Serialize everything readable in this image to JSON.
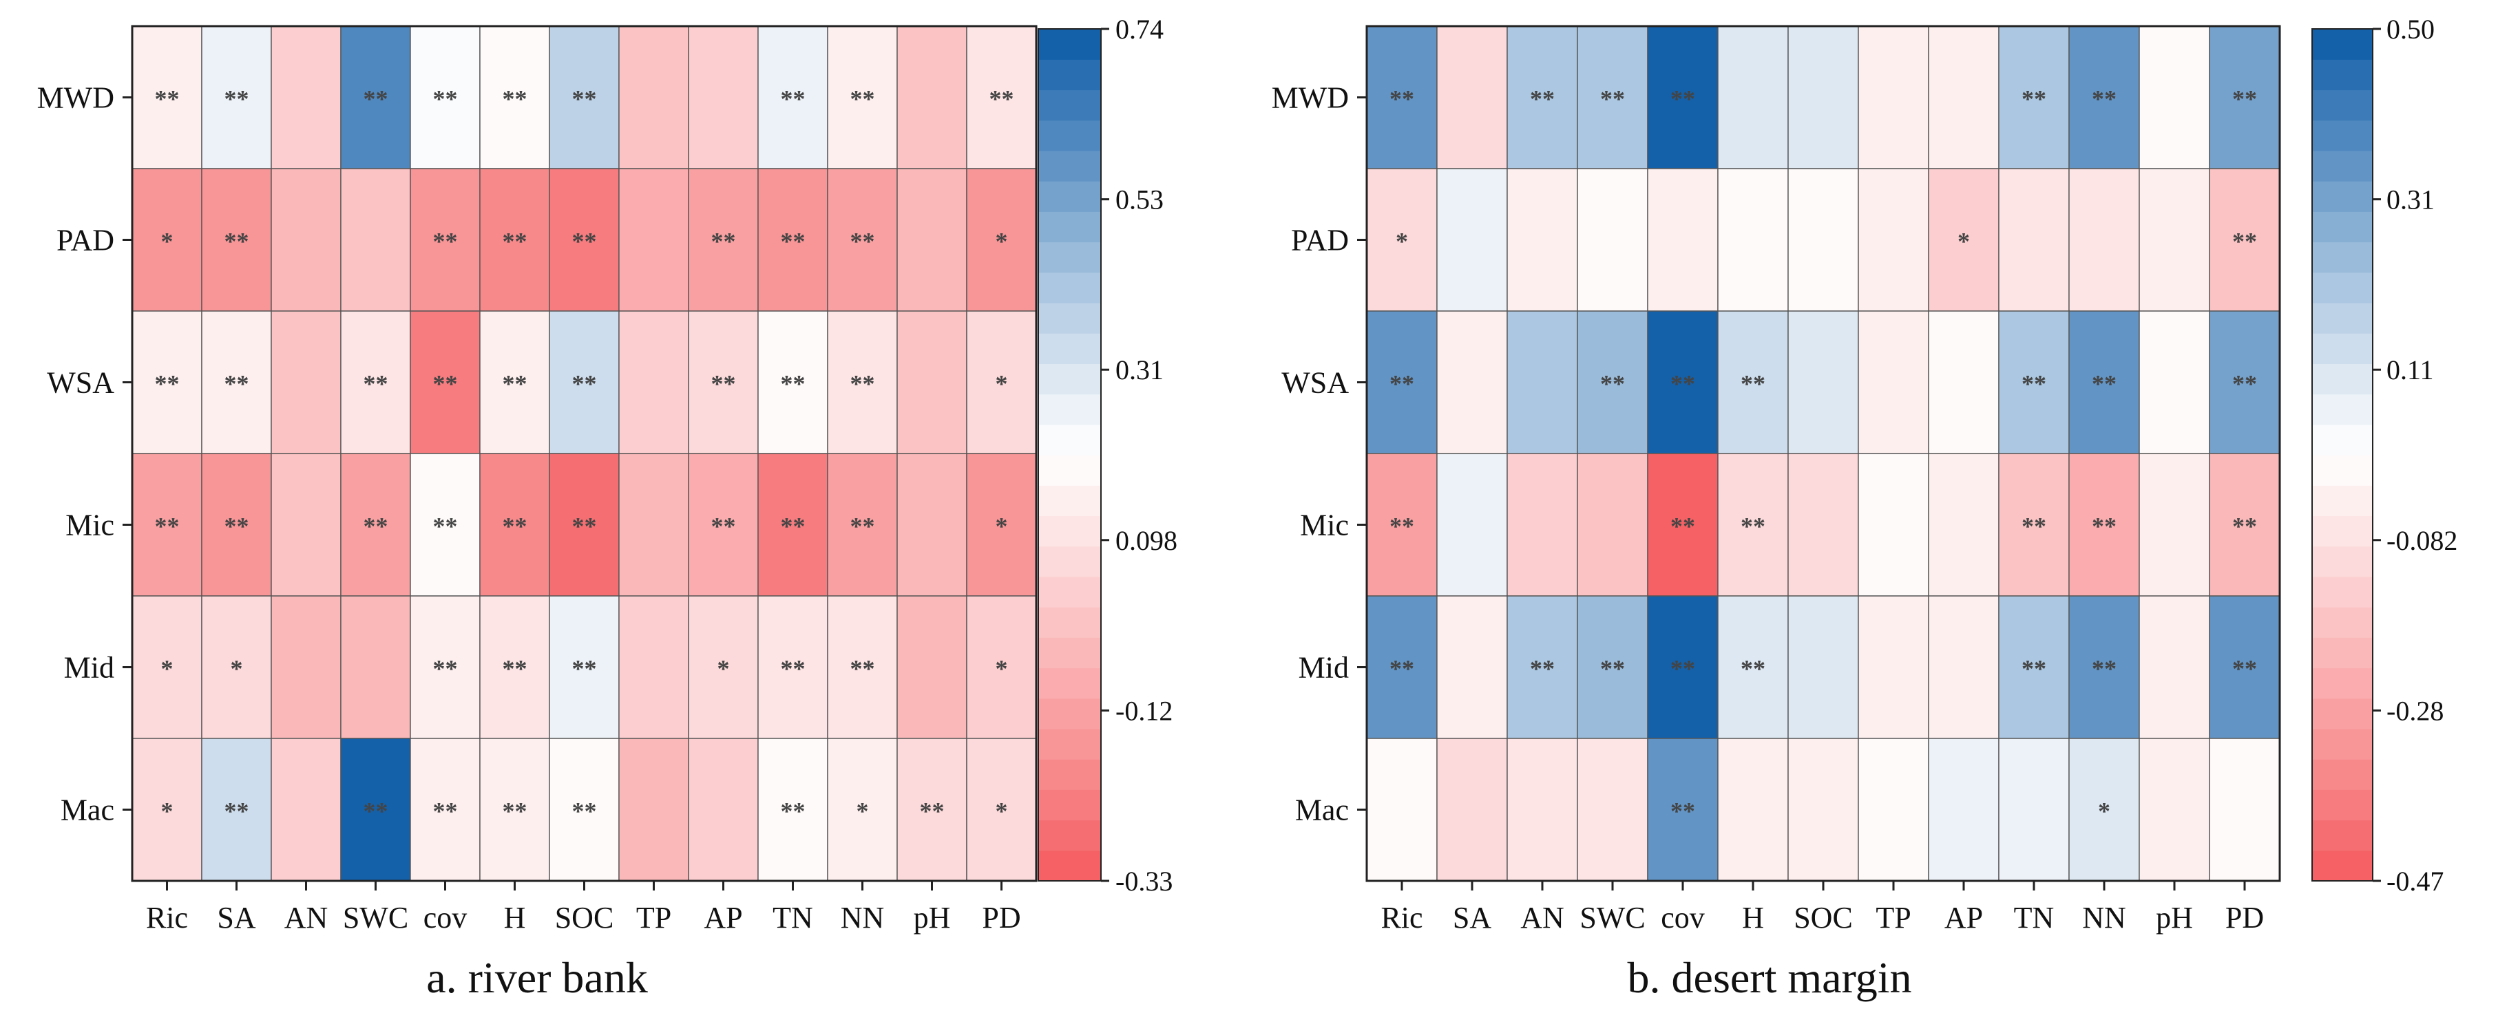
{
  "chart_data": [
    {
      "type": "heatmap",
      "title": "a. river bank",
      "rows": [
        "MWD",
        "PAD",
        "WSA",
        "Mic",
        "Mid",
        "Mac"
      ],
      "columns": [
        "Ric",
        "SA",
        "AN",
        "SWC",
        "cov",
        "H",
        "SOC",
        "TP",
        "AP",
        "TN",
        "NN",
        "pH",
        "PD"
      ],
      "values": [
        [
          0.16,
          0.28,
          0.05,
          0.6,
          0.22,
          0.19,
          0.36,
          -0.02,
          0.05,
          0.27,
          0.14,
          -0.02,
          0.12
        ],
        [
          -0.17,
          -0.14,
          -0.04,
          -0.02,
          -0.17,
          -0.19,
          -0.23,
          -0.1,
          -0.13,
          -0.17,
          -0.13,
          -0.06,
          -0.17
        ],
        [
          0.13,
          0.15,
          -0.02,
          0.11,
          -0.22,
          0.15,
          0.32,
          0.03,
          0.08,
          0.18,
          0.12,
          -0.02,
          0.06
        ],
        [
          -0.12,
          -0.16,
          -0.02,
          -0.11,
          0.18,
          -0.18,
          -0.27,
          -0.06,
          -0.09,
          -0.22,
          -0.13,
          -0.03,
          -0.17
        ],
        [
          0.06,
          0.09,
          -0.04,
          -0.03,
          0.14,
          0.11,
          0.27,
          0.03,
          0.06,
          0.12,
          0.11,
          -0.05,
          0.05
        ],
        [
          0.06,
          0.35,
          0.04,
          0.74,
          0.14,
          0.14,
          0.18,
          -0.03,
          0.02,
          0.18,
          0.13,
          0.09,
          0.09
        ]
      ],
      "significance": [
        [
          "**",
          "**",
          "",
          "**",
          "**",
          "**",
          "**",
          "",
          "",
          "**",
          "**",
          "",
          "**"
        ],
        [
          "*",
          "**",
          "",
          "",
          "**",
          "**",
          "**",
          "",
          "**",
          "**",
          "**",
          "",
          "*"
        ],
        [
          "**",
          "**",
          "",
          "**",
          "**",
          "**",
          "**",
          "",
          "**",
          "**",
          "**",
          "",
          "*"
        ],
        [
          "**",
          "**",
          "",
          "**",
          "**",
          "**",
          "**",
          "",
          "**",
          "**",
          "**",
          "",
          "*"
        ],
        [
          "*",
          "*",
          "",
          "",
          "**",
          "**",
          "**",
          "",
          "*",
          "**",
          "**",
          "",
          "*"
        ],
        [
          "*",
          "**",
          "",
          "**",
          "**",
          "**",
          "**",
          "",
          "",
          "**",
          "*",
          "**",
          "*"
        ]
      ],
      "colorbar_ticks": [
        "0.74",
        "0.53",
        "0.31",
        "0.098",
        "-0.12",
        "-0.33"
      ],
      "value_range": [
        -0.33,
        0.74
      ]
    },
    {
      "type": "heatmap",
      "title": "b. desert margin",
      "rows": [
        "MWD",
        "PAD",
        "WSA",
        "Mic",
        "Mid",
        "Mac"
      ],
      "columns": [
        "Ric",
        "SA",
        "AN",
        "SWC",
        "cov",
        "H",
        "SOC",
        "TP",
        "AP",
        "TN",
        "NN",
        "pH",
        "PD"
      ],
      "values": [
        [
          0.34,
          -0.12,
          0.22,
          0.2,
          0.5,
          0.09,
          0.1,
          -0.02,
          -0.03,
          0.2,
          0.34,
          0.0,
          0.3
        ],
        [
          -0.12,
          0.06,
          -0.05,
          0.0,
          -0.05,
          0.0,
          0.01,
          -0.03,
          -0.13,
          -0.07,
          -0.07,
          -0.04,
          -0.17
        ],
        [
          0.34,
          -0.05,
          0.2,
          0.24,
          0.5,
          0.12,
          0.1,
          -0.03,
          -0.01,
          0.22,
          0.34,
          -0.01,
          0.32
        ],
        [
          -0.28,
          0.06,
          -0.14,
          -0.16,
          -0.45,
          -0.12,
          -0.12,
          0.0,
          -0.02,
          -0.17,
          -0.24,
          -0.05,
          -0.22
        ],
        [
          0.36,
          -0.05,
          0.2,
          0.24,
          0.48,
          0.11,
          0.1,
          -0.03,
          -0.03,
          0.2,
          0.35,
          -0.02,
          0.33
        ],
        [
          0.0,
          -0.12,
          -0.06,
          -0.07,
          0.33,
          -0.05,
          -0.04,
          0.0,
          0.08,
          0.06,
          0.1,
          -0.04,
          0.0
        ]
      ],
      "significance": [
        [
          "**",
          "",
          "**",
          "**",
          "**",
          "",
          "",
          "",
          "",
          "**",
          "**",
          "",
          "**"
        ],
        [
          "*",
          "",
          "",
          "",
          "",
          "",
          "",
          "",
          "*",
          "",
          "",
          "",
          "**"
        ],
        [
          "**",
          "",
          "",
          "**",
          "**",
          "**",
          "",
          "",
          "",
          "**",
          "**",
          "",
          "**"
        ],
        [
          "**",
          "",
          "",
          "",
          "**",
          "**",
          "",
          "",
          "",
          "**",
          "**",
          "",
          "**"
        ],
        [
          "**",
          "",
          "**",
          "**",
          "**",
          "**",
          "",
          "",
          "",
          "**",
          "**",
          "",
          "**"
        ],
        [
          "",
          "",
          "",
          "",
          "**",
          "",
          "",
          "",
          "",
          "",
          "*",
          "",
          ""
        ]
      ],
      "colorbar_ticks": [
        "0.50",
        "0.31",
        "0.11",
        "-0.082",
        "-0.28",
        "-0.47"
      ],
      "value_range": [
        -0.47,
        0.5
      ]
    }
  ],
  "colors": {
    "negative_end": "#f4595c",
    "neutral": "#ffffff",
    "positive_end": "#0a5aa6",
    "grid": "#555555",
    "text": "#111111",
    "star": "#444444"
  }
}
